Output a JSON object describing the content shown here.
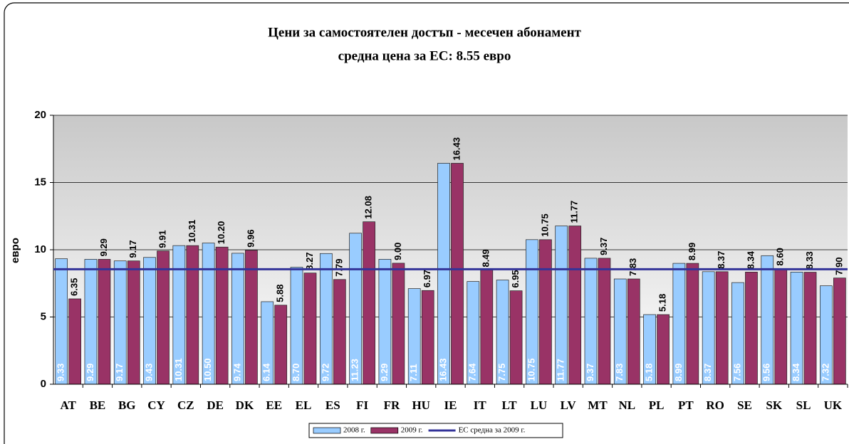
{
  "chart_data": {
    "type": "bar",
    "title": "Цени за самостоятелен достъп - месечен абонамент",
    "subtitle": "средна цена за ЕС: 8.55 евро",
    "y_label": "евро",
    "categories": [
      "AT",
      "BE",
      "BG",
      "CY",
      "CZ",
      "DE",
      "DK",
      "EE",
      "EL",
      "ES",
      "FI",
      "FR",
      "HU",
      "IE",
      "IT",
      "LT",
      "LU",
      "LV",
      "MT",
      "NL",
      "PL",
      "PT",
      "RO",
      "SE",
      "SK",
      "SL",
      "UK"
    ],
    "series": [
      {
        "name": "2008 г.",
        "color": "#99ccff",
        "values": [
          9.33,
          9.29,
          9.17,
          9.43,
          10.31,
          10.5,
          9.74,
          6.14,
          8.7,
          9.72,
          11.23,
          9.29,
          7.11,
          16.43,
          7.64,
          7.75,
          10.75,
          11.77,
          9.37,
          7.83,
          5.18,
          8.99,
          8.37,
          7.56,
          9.56,
          8.34,
          7.32
        ],
        "value_labels": [
          "9.33",
          "9.29",
          "9.17",
          "9.43",
          "10.31",
          "10.50",
          "9.74",
          "6.14",
          "8.70",
          "9.72",
          "11.23",
          "9.29",
          "7.11",
          "16.43",
          "7.64",
          "7.75",
          "10.75",
          "11.77",
          "9.37",
          "7.83",
          "5.18",
          "8.99",
          "8.37",
          "7.56",
          "9.56",
          "8.34",
          "7.32"
        ]
      },
      {
        "name": "2009 г.",
        "color": "#993366",
        "values": [
          6.35,
          9.29,
          9.17,
          9.91,
          10.31,
          10.2,
          9.96,
          5.88,
          8.27,
          7.79,
          12.08,
          9,
          6.97,
          16.43,
          8.49,
          6.95,
          10.75,
          11.77,
          9.37,
          7.83,
          5.18,
          8.99,
          8.37,
          8.34,
          8.6,
          8.33,
          7.9
        ],
        "value_labels": [
          "6.35",
          "9.29",
          "9.17",
          "9.91",
          "10.31",
          "10.20",
          "9.96",
          "5.88",
          "8.27",
          "7.79",
          "12.08",
          "9.00",
          "6.97",
          "16.43",
          "8.49",
          "6.95",
          "10.75",
          "11.77",
          "9.37",
          "7.83",
          "5.18",
          "8.99",
          "8.37",
          "8.34",
          "8.60",
          "8.33",
          "7.90"
        ]
      }
    ],
    "average": {
      "name": "ЕС средна за 2009 г.",
      "value": 8.55,
      "color": "#333399"
    },
    "ylim": [
      0,
      20
    ],
    "yticks": [
      0,
      5,
      10,
      15,
      20
    ],
    "grid": true,
    "legend": "bottom"
  }
}
